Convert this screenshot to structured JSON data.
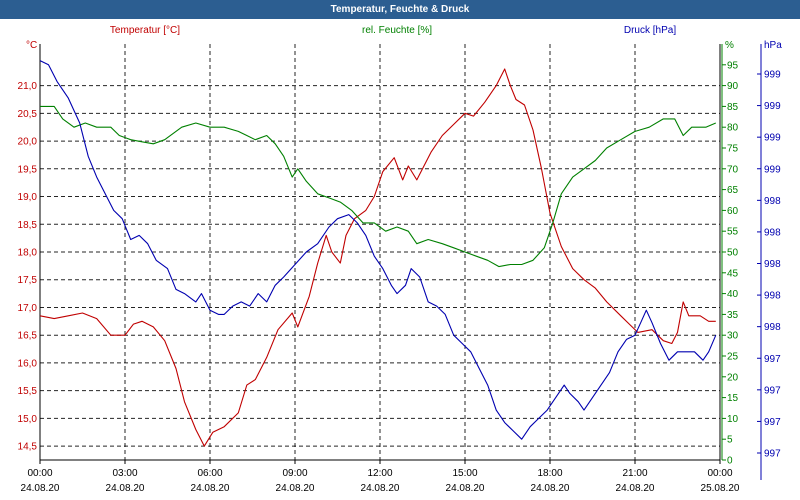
{
  "window": {
    "title": "Temperatur, Feuchte & Druck"
  },
  "chart_data": {
    "type": "line",
    "colors": {
      "temperature": "#c00000",
      "humidity": "#008000",
      "pressure": "#0000b0",
      "grid": "#000000"
    },
    "x_ticks": [
      {
        "time": "00:00",
        "date": "24.08.20"
      },
      {
        "time": "03:00",
        "date": "24.08.20"
      },
      {
        "time": "06:00",
        "date": "24.08.20"
      },
      {
        "time": "09:00",
        "date": "24.08.20"
      },
      {
        "time": "12:00",
        "date": "24.08.20"
      },
      {
        "time": "15:00",
        "date": "24.08.20"
      },
      {
        "time": "18:00",
        "date": "24.08.20"
      },
      {
        "time": "21:00",
        "date": "24.08.20"
      },
      {
        "time": "00:00",
        "date": "25.08.20"
      }
    ],
    "x_range_hours": [
      0,
      24
    ],
    "temperature_axis": {
      "label": "Temperatur [°C]",
      "unit": "°C",
      "ylim": [
        14.25,
        21.75
      ],
      "ticks": [
        "14,5",
        "15,0",
        "15,5",
        "16,0",
        "16,5",
        "17,0",
        "17,5",
        "18,0",
        "18,5",
        "19,0",
        "19,5",
        "20,0",
        "20,5",
        "21,0"
      ]
    },
    "humidity_axis": {
      "label": "rel. Feuchte [%]",
      "unit": "%",
      "ylim": [
        0,
        100
      ],
      "ticks": [
        "0",
        "5",
        "10",
        "15",
        "20",
        "25",
        "30",
        "35",
        "40",
        "45",
        "50",
        "55",
        "60",
        "65",
        "70",
        "75",
        "80",
        "85",
        "90",
        "95"
      ]
    },
    "pressure_axis": {
      "label": "Druck [hPa]",
      "unit": "hPa",
      "ticks": [
        "997",
        "997",
        "997",
        "997",
        "998",
        "998",
        "998",
        "998",
        "998",
        "999",
        "999",
        "999",
        "999"
      ]
    },
    "series": [
      {
        "name": "Temperatur [°C]",
        "axis": "temperature",
        "points": [
          [
            0,
            16.85
          ],
          [
            0.5,
            16.8
          ],
          [
            1,
            16.85
          ],
          [
            1.5,
            16.9
          ],
          [
            2,
            16.8
          ],
          [
            2.5,
            16.5
          ],
          [
            3,
            16.5
          ],
          [
            3.3,
            16.7
          ],
          [
            3.6,
            16.75
          ],
          [
            4,
            16.65
          ],
          [
            4.4,
            16.4
          ],
          [
            4.8,
            15.9
          ],
          [
            5.1,
            15.3
          ],
          [
            5.5,
            14.8
          ],
          [
            5.8,
            14.5
          ],
          [
            6.1,
            14.75
          ],
          [
            6.5,
            14.85
          ],
          [
            7,
            15.1
          ],
          [
            7.3,
            15.6
          ],
          [
            7.6,
            15.7
          ],
          [
            8,
            16.1
          ],
          [
            8.4,
            16.6
          ],
          [
            8.9,
            16.9
          ],
          [
            9.1,
            16.65
          ],
          [
            9.5,
            17.2
          ],
          [
            9.8,
            17.8
          ],
          [
            10.1,
            18.3
          ],
          [
            10.3,
            18.0
          ],
          [
            10.6,
            17.8
          ],
          [
            10.8,
            18.3
          ],
          [
            11.1,
            18.6
          ],
          [
            11.5,
            18.75
          ],
          [
            11.8,
            19.0
          ],
          [
            12.1,
            19.45
          ],
          [
            12.5,
            19.7
          ],
          [
            12.8,
            19.3
          ],
          [
            13,
            19.55
          ],
          [
            13.3,
            19.3
          ],
          [
            13.8,
            19.8
          ],
          [
            14.2,
            20.1
          ],
          [
            14.6,
            20.3
          ],
          [
            15,
            20.5
          ],
          [
            15.3,
            20.45
          ],
          [
            15.7,
            20.7
          ],
          [
            16.1,
            21.0
          ],
          [
            16.4,
            21.3
          ],
          [
            16.6,
            21.0
          ],
          [
            16.8,
            20.75
          ],
          [
            17.1,
            20.65
          ],
          [
            17.4,
            20.2
          ],
          [
            17.7,
            19.5
          ],
          [
            18,
            18.7
          ],
          [
            18.4,
            18.1
          ],
          [
            18.8,
            17.7
          ],
          [
            19.2,
            17.5
          ],
          [
            19.6,
            17.35
          ],
          [
            20,
            17.1
          ],
          [
            20.5,
            16.85
          ],
          [
            20.8,
            16.7
          ],
          [
            21.1,
            16.55
          ],
          [
            21.6,
            16.6
          ],
          [
            22,
            16.4
          ],
          [
            22.3,
            16.35
          ],
          [
            22.5,
            16.55
          ],
          [
            22.7,
            17.1
          ],
          [
            22.9,
            16.85
          ],
          [
            23.3,
            16.85
          ],
          [
            23.6,
            16.75
          ],
          [
            23.85,
            16.75
          ]
        ]
      },
      {
        "name": "rel. Feuchte [%]",
        "axis": "humidity",
        "points": [
          [
            0,
            85
          ],
          [
            0.5,
            85
          ],
          [
            0.8,
            82
          ],
          [
            1.2,
            80
          ],
          [
            1.6,
            81
          ],
          [
            2,
            80
          ],
          [
            2.5,
            80
          ],
          [
            2.8,
            78
          ],
          [
            3.2,
            77
          ],
          [
            3.6,
            76.5
          ],
          [
            4,
            76
          ],
          [
            4.4,
            77
          ],
          [
            5,
            80
          ],
          [
            5.5,
            81
          ],
          [
            6,
            80
          ],
          [
            6.5,
            80
          ],
          [
            7,
            79
          ],
          [
            7.3,
            78
          ],
          [
            7.6,
            77
          ],
          [
            8,
            78
          ],
          [
            8.3,
            76
          ],
          [
            8.6,
            73
          ],
          [
            8.9,
            68
          ],
          [
            9.1,
            70
          ],
          [
            9.4,
            67
          ],
          [
            9.8,
            64
          ],
          [
            10.2,
            63
          ],
          [
            10.6,
            62
          ],
          [
            11,
            60
          ],
          [
            11.4,
            57
          ],
          [
            11.8,
            57
          ],
          [
            12.2,
            55
          ],
          [
            12.6,
            56
          ],
          [
            13,
            55
          ],
          [
            13.3,
            52
          ],
          [
            13.7,
            53
          ],
          [
            14.2,
            52
          ],
          [
            14.6,
            51
          ],
          [
            15,
            50
          ],
          [
            15.4,
            49
          ],
          [
            15.8,
            48
          ],
          [
            16.2,
            46.5
          ],
          [
            16.6,
            47
          ],
          [
            17,
            47
          ],
          [
            17.4,
            48
          ],
          [
            17.8,
            51
          ],
          [
            18.1,
            57
          ],
          [
            18.4,
            64
          ],
          [
            18.8,
            68
          ],
          [
            19.2,
            70
          ],
          [
            19.6,
            72
          ],
          [
            20,
            75
          ],
          [
            20.5,
            77
          ],
          [
            21,
            79
          ],
          [
            21.5,
            80
          ],
          [
            22,
            82
          ],
          [
            22.4,
            82
          ],
          [
            22.7,
            78
          ],
          [
            23,
            80
          ],
          [
            23.5,
            80
          ],
          [
            23.85,
            81
          ]
        ]
      },
      {
        "name": "Druck [hPa]",
        "axis": "pressure",
        "points": [
          [
            0,
            96
          ],
          [
            0.3,
            95
          ],
          [
            0.6,
            91
          ],
          [
            1,
            87
          ],
          [
            1.4,
            81
          ],
          [
            1.7,
            73
          ],
          [
            2,
            68
          ],
          [
            2.3,
            64
          ],
          [
            2.6,
            60
          ],
          [
            2.9,
            58
          ],
          [
            3.2,
            53
          ],
          [
            3.5,
            54
          ],
          [
            3.8,
            52
          ],
          [
            4.1,
            48
          ],
          [
            4.5,
            46
          ],
          [
            4.8,
            41
          ],
          [
            5.1,
            40
          ],
          [
            5.5,
            38
          ],
          [
            5.7,
            40
          ],
          [
            6,
            36
          ],
          [
            6.3,
            35
          ],
          [
            6.5,
            35
          ],
          [
            6.8,
            37
          ],
          [
            7.1,
            38
          ],
          [
            7.4,
            37
          ],
          [
            7.7,
            40
          ],
          [
            8,
            38
          ],
          [
            8.3,
            42
          ],
          [
            8.6,
            44
          ],
          [
            9,
            47
          ],
          [
            9.4,
            50
          ],
          [
            9.8,
            52
          ],
          [
            10.2,
            56
          ],
          [
            10.5,
            58
          ],
          [
            10.9,
            59
          ],
          [
            11.2,
            57
          ],
          [
            11.5,
            54
          ],
          [
            11.8,
            49
          ],
          [
            12.1,
            46
          ],
          [
            12.4,
            42
          ],
          [
            12.6,
            40
          ],
          [
            12.9,
            42
          ],
          [
            13.1,
            46
          ],
          [
            13.4,
            44
          ],
          [
            13.7,
            38
          ],
          [
            14,
            37
          ],
          [
            14.3,
            35
          ],
          [
            14.6,
            30
          ],
          [
            14.9,
            28
          ],
          [
            15.2,
            26
          ],
          [
            15.5,
            22
          ],
          [
            15.8,
            18
          ],
          [
            16.1,
            12
          ],
          [
            16.4,
            9
          ],
          [
            16.7,
            7
          ],
          [
            17,
            5
          ],
          [
            17.3,
            8
          ],
          [
            17.6,
            10
          ],
          [
            17.9,
            12
          ],
          [
            18.2,
            15
          ],
          [
            18.5,
            18
          ],
          [
            18.7,
            16
          ],
          [
            19,
            14
          ],
          [
            19.2,
            12
          ],
          [
            19.5,
            15
          ],
          [
            19.8,
            18
          ],
          [
            20.1,
            21
          ],
          [
            20.4,
            26
          ],
          [
            20.7,
            29
          ],
          [
            21,
            30
          ],
          [
            21.2,
            33
          ],
          [
            21.4,
            36
          ],
          [
            21.6,
            33
          ],
          [
            21.9,
            28
          ],
          [
            22.2,
            24
          ],
          [
            22.5,
            26
          ],
          [
            22.8,
            26
          ],
          [
            23.1,
            26
          ],
          [
            23.4,
            24
          ],
          [
            23.6,
            26
          ],
          [
            23.85,
            30
          ]
        ]
      }
    ]
  }
}
